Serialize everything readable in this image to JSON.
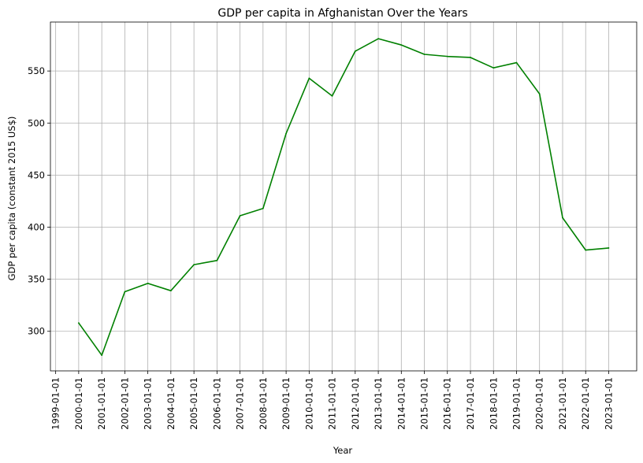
{
  "chart_data": {
    "type": "line",
    "title": "GDP per capita in Afghanistan Over the Years",
    "xlabel": "Year",
    "ylabel": "GDP per capita (constant 2015 US$)",
    "x_tick_labels": [
      "1999-01-01",
      "2000-01-01",
      "2001-01-01",
      "2002-01-01",
      "2003-01-01",
      "2004-01-01",
      "2005-01-01",
      "2006-01-01",
      "2007-01-01",
      "2008-01-01",
      "2009-01-01",
      "2010-01-01",
      "2011-01-01",
      "2012-01-01",
      "2013-01-01",
      "2014-01-01",
      "2015-01-01",
      "2016-01-01",
      "2017-01-01",
      "2018-01-01",
      "2019-01-01",
      "2020-01-01",
      "2021-01-01",
      "2022-01-01",
      "2023-01-01"
    ],
    "y_ticks": [
      300,
      350,
      400,
      450,
      500,
      550
    ],
    "ylim": [
      262,
      597
    ],
    "xlim": [
      "1998-10-10",
      "2024-03-20"
    ],
    "grid": true,
    "series": [
      {
        "color": "#008000",
        "x": [
          "2000-01-01",
          "2001-01-01",
          "2002-01-01",
          "2003-01-01",
          "2004-01-01",
          "2005-01-01",
          "2006-01-01",
          "2007-01-01",
          "2008-01-01",
          "2009-01-01",
          "2010-01-01",
          "2011-01-01",
          "2012-01-01",
          "2013-01-01",
          "2014-01-01",
          "2015-01-01",
          "2016-01-01",
          "2017-01-01",
          "2018-01-01",
          "2019-01-01",
          "2020-01-01",
          "2021-01-01",
          "2022-01-01",
          "2023-01-01"
        ],
        "values": [
          308,
          277,
          338,
          346,
          339,
          364,
          368,
          411,
          418,
          490,
          543,
          526,
          569,
          581,
          575,
          566,
          564,
          563,
          553,
          558,
          528,
          409,
          378,
          380
        ]
      }
    ]
  }
}
